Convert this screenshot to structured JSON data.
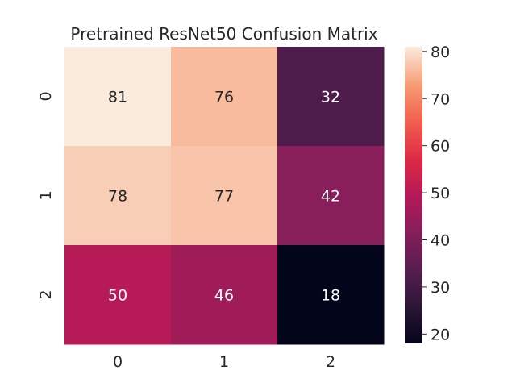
{
  "chart_data": {
    "type": "heatmap",
    "title": "Pretrained ResNet50 Confusion Matrix",
    "xlabel": "",
    "ylabel": "",
    "x_categories": [
      "0",
      "1",
      "2"
    ],
    "y_categories": [
      "0",
      "1",
      "2"
    ],
    "values": [
      [
        81,
        76,
        32
      ],
      [
        78,
        77,
        42
      ],
      [
        50,
        46,
        18
      ]
    ],
    "value_labels": [
      [
        "81",
        "76",
        "32"
      ],
      [
        "78",
        "77",
        "42"
      ],
      [
        "50",
        "46",
        "18"
      ]
    ],
    "colormap": "rocket",
    "vmin": 18,
    "vmax": 81,
    "colorbar_ticks": [
      20,
      30,
      40,
      50,
      60,
      70,
      80
    ],
    "colorbar_tick_labels": [
      "20",
      "30",
      "40",
      "50",
      "60",
      "70",
      "80"
    ],
    "grid": false
  }
}
